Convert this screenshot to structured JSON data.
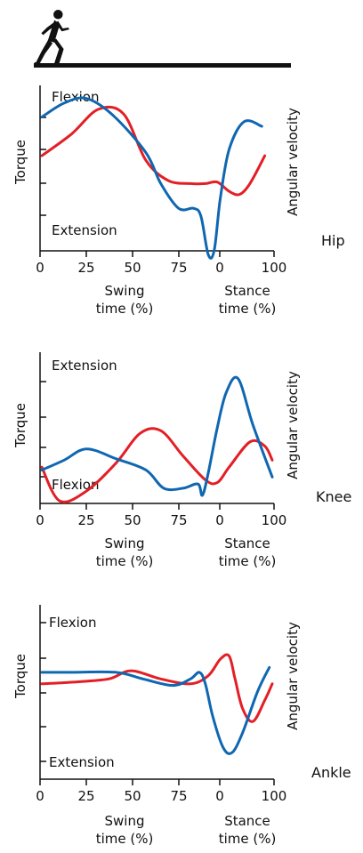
{
  "colors": {
    "red": "#e31f26",
    "blue": "#0f67b1",
    "axis": "#111111"
  },
  "header": {
    "icon": "running-person-icon"
  },
  "chart_data": [
    {
      "type": "line",
      "joint": "Hip",
      "ylabel": "Torque",
      "ylabel_right": "Angular velocity",
      "top_label": "Flexion",
      "bottom_label": "Extension",
      "x_ticks": [
        "0",
        "25",
        "50",
        "75",
        "0",
        "100"
      ],
      "x_group_labels": [
        [
          "Swing",
          "time (%)"
        ],
        [
          "Stance",
          "time (%)"
        ]
      ],
      "series": [
        {
          "color": "#e31f26",
          "points": [
            [
              0,
              58
            ],
            [
              20,
              72
            ],
            [
              38,
              88
            ],
            [
              55,
              85
            ],
            [
              70,
              55
            ],
            [
              85,
              42
            ],
            [
              100,
              40
            ],
            [
              110,
              40
            ],
            [
              118,
              41
            ],
            [
              126,
              35
            ],
            [
              133,
              33
            ],
            [
              140,
              40
            ],
            [
              150,
              58
            ]
          ]
        },
        {
          "color": "#0f67b1",
          "points": [
            [
              0,
              83
            ],
            [
              15,
              92
            ],
            [
              30,
              95
            ],
            [
              48,
              84
            ],
            [
              70,
              60
            ],
            [
              80,
              40
            ],
            [
              92,
              24
            ],
            [
              102,
              24
            ],
            [
              107,
              19
            ],
            [
              112,
              -6
            ],
            [
              116,
              -3
            ],
            [
              120,
              30
            ],
            [
              126,
              62
            ],
            [
              136,
              80
            ],
            [
              148,
              77
            ]
          ]
        }
      ]
    },
    {
      "type": "line",
      "joint": "Knee",
      "ylabel": "Torque",
      "ylabel_right": "Angular velocity",
      "top_label": "Extension",
      "bottom_label": "Flexion",
      "x_ticks": [
        "0",
        "25",
        "50",
        "75",
        "0",
        "100"
      ],
      "x_group_labels": [
        [
          "Swing",
          "time (%)"
        ],
        [
          "Stance",
          "time (%)"
        ]
      ],
      "series": [
        {
          "color": "#e31f26",
          "points": [
            [
              0,
              22
            ],
            [
              12,
              -2
            ],
            [
              30,
              5
            ],
            [
              50,
              25
            ],
            [
              66,
              46
            ],
            [
              80,
              48
            ],
            [
              95,
              30
            ],
            [
              110,
              13
            ],
            [
              118,
              11
            ],
            [
              126,
              22
            ],
            [
              140,
              40
            ],
            [
              150,
              37
            ],
            [
              155,
              27
            ]
          ]
        },
        {
          "color": "#0f67b1",
          "points": [
            [
              0,
              20
            ],
            [
              15,
              27
            ],
            [
              30,
              35
            ],
            [
              50,
              28
            ],
            [
              70,
              20
            ],
            [
              82,
              7
            ],
            [
              95,
              7
            ],
            [
              105,
              10
            ],
            [
              108,
              2
            ],
            [
              112,
              18
            ],
            [
              118,
              50
            ],
            [
              124,
              75
            ],
            [
              132,
              85
            ],
            [
              142,
              52
            ],
            [
              155,
              15
            ]
          ]
        }
      ]
    },
    {
      "type": "line",
      "joint": "Ankle",
      "ylabel": "Torque",
      "ylabel_right": "Angular velocity",
      "top_label": "Flexion",
      "bottom_label": "Extension",
      "x_ticks": [
        "0",
        "25",
        "50",
        "75",
        "0",
        "100"
      ],
      "x_group_labels": [
        [
          "Swing",
          "time (%)"
        ],
        [
          "Stance",
          "time (%)"
        ]
      ],
      "series": [
        {
          "color": "#e31f26",
          "points": [
            [
              0,
              55
            ],
            [
              20,
              56
            ],
            [
              45,
              58
            ],
            [
              60,
              63
            ],
            [
              80,
              58
            ],
            [
              100,
              55
            ],
            [
              112,
              60
            ],
            [
              120,
              70
            ],
            [
              126,
              72
            ],
            [
              130,
              58
            ],
            [
              135,
              40
            ],
            [
              142,
              32
            ],
            [
              150,
              45
            ],
            [
              155,
              55
            ]
          ]
        },
        {
          "color": "#0f67b1",
          "points": [
            [
              0,
              62
            ],
            [
              20,
              62
            ],
            [
              50,
              62
            ],
            [
              68,
              58
            ],
            [
              88,
              54
            ],
            [
              100,
              58
            ],
            [
              106,
              62
            ],
            [
              110,
              55
            ],
            [
              115,
              35
            ],
            [
              122,
              16
            ],
            [
              128,
              13
            ],
            [
              135,
              25
            ],
            [
              145,
              50
            ],
            [
              153,
              65
            ]
          ]
        }
      ]
    }
  ]
}
